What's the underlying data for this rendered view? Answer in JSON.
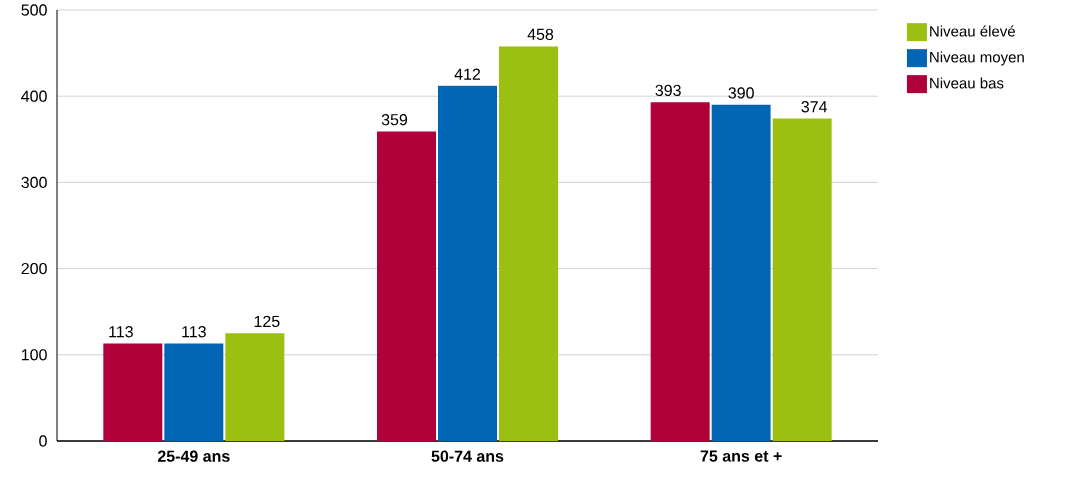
{
  "chart_data": {
    "type": "bar",
    "categories": [
      "25-49 ans",
      "50-74 ans",
      "75 ans et +"
    ],
    "series": [
      {
        "name": "Niveau bas",
        "color": "#b0003a",
        "values": [
          113,
          359,
          393
        ]
      },
      {
        "name": "Niveau moyen",
        "color": "#0066b3",
        "values": [
          113,
          412,
          390
        ]
      },
      {
        "name": "Niveau élevé",
        "color": "#9bc011",
        "values": [
          125,
          458,
          374
        ]
      }
    ],
    "ylim": [
      0,
      500
    ],
    "yticks": [
      0,
      100,
      200,
      300,
      400,
      500
    ],
    "grid": "y",
    "legend": "top right",
    "data_labels": true
  }
}
